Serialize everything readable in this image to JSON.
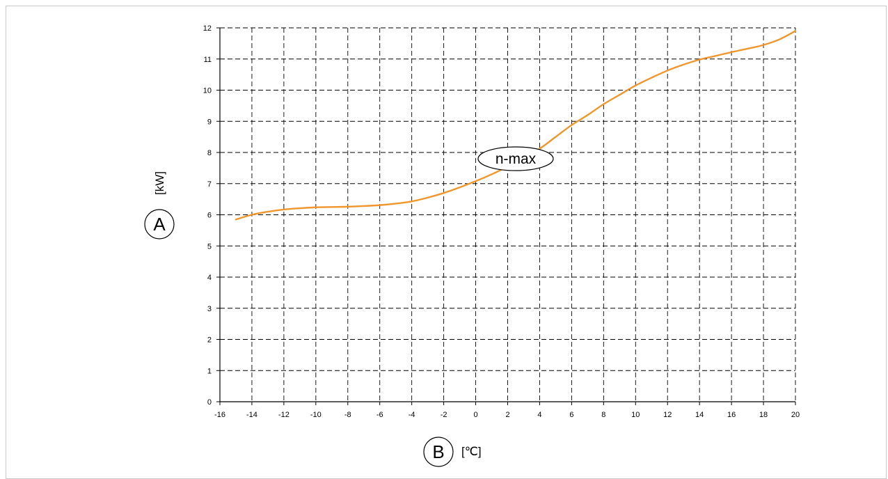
{
  "chart_data": {
    "type": "line",
    "xlim": [
      -16,
      20
    ],
    "ylim": [
      0,
      12
    ],
    "x_ticks": [
      -16,
      -14,
      -12,
      -10,
      -8,
      -6,
      -4,
      -2,
      0,
      2,
      4,
      6,
      8,
      10,
      12,
      14,
      16,
      18,
      20
    ],
    "y_ticks": [
      0,
      1,
      2,
      3,
      4,
      5,
      6,
      7,
      8,
      9,
      10,
      11,
      12
    ],
    "grid": true,
    "grid_style": "dashed",
    "y_axis_marker": "A",
    "y_axis_unit": "[kW]",
    "x_axis_marker": "B",
    "x_axis_unit": "[℃]",
    "series": [
      {
        "name": "n-max",
        "color": "#f0962c",
        "x": [
          -15,
          -14,
          -13,
          -12,
          -11,
          -10,
          -9,
          -8,
          -7,
          -6,
          -5,
          -4,
          -3,
          -2,
          -1,
          0,
          1,
          2,
          3,
          4,
          5,
          6,
          7,
          8,
          9,
          10,
          11,
          12,
          13,
          14,
          15,
          16,
          17,
          18,
          19,
          20
        ],
        "y": [
          5.85,
          6.0,
          6.1,
          6.17,
          6.21,
          6.24,
          6.25,
          6.26,
          6.28,
          6.31,
          6.36,
          6.43,
          6.55,
          6.7,
          6.88,
          7.08,
          7.3,
          7.55,
          7.82,
          8.12,
          8.5,
          8.88,
          9.2,
          9.55,
          9.85,
          10.15,
          10.4,
          10.63,
          10.82,
          10.98,
          11.1,
          11.22,
          11.33,
          11.45,
          11.63,
          11.9
        ]
      }
    ]
  }
}
